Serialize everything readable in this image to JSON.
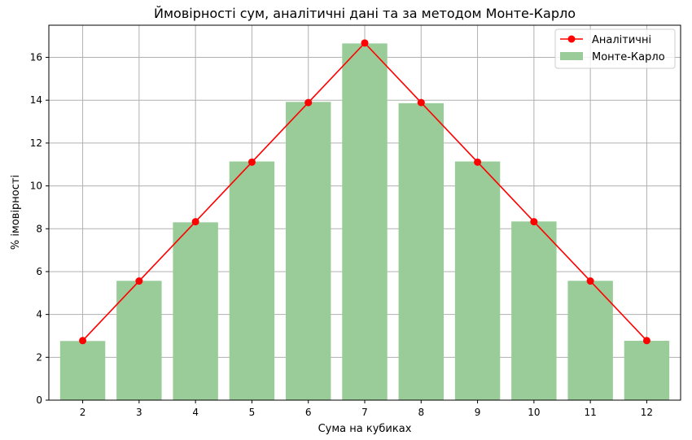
{
  "chart_data": {
    "type": "bar",
    "title": "Ймовірності сум, аналітичні дані та за методом Монте-Карло",
    "xlabel": "Сума на кубиках",
    "ylabel": "% імовірності",
    "categories": [
      "2",
      "3",
      "4",
      "5",
      "6",
      "7",
      "8",
      "9",
      "10",
      "11",
      "12"
    ],
    "x": [
      2,
      3,
      4,
      5,
      6,
      7,
      8,
      9,
      10,
      11,
      12
    ],
    "ylim": [
      0,
      17.5
    ],
    "yticks": [
      0,
      2,
      4,
      6,
      8,
      10,
      12,
      14,
      16
    ],
    "grid": true,
    "legend_position": "top-right",
    "series": [
      {
        "name": "Аналітичні",
        "type": "line",
        "marker": "circle",
        "color": "#ff0000",
        "values": [
          2.78,
          5.56,
          8.33,
          11.11,
          13.89,
          16.67,
          13.89,
          11.11,
          8.33,
          5.56,
          2.78
        ]
      },
      {
        "name": "Монте-Карло",
        "type": "bar",
        "color": "#99cc99",
        "values": [
          2.76,
          5.57,
          8.3,
          11.14,
          13.92,
          16.65,
          13.86,
          11.14,
          8.34,
          5.57,
          2.77
        ]
      }
    ]
  }
}
